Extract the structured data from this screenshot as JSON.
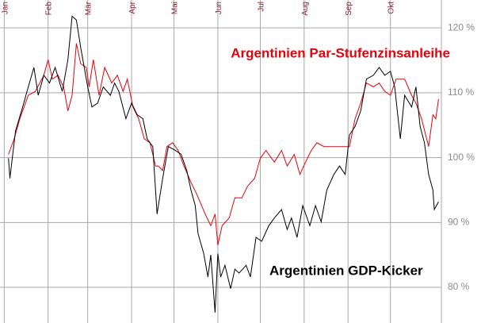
{
  "chart_data": {
    "type": "line",
    "xlim": [
      -3,
      309
    ],
    "xticks": [
      {
        "value": 0,
        "label": "Jan"
      },
      {
        "value": 31,
        "label": "Feb"
      },
      {
        "value": 59,
        "label": "Mär"
      },
      {
        "value": 90,
        "label": "Apr"
      },
      {
        "value": 120,
        "label": "Mai"
      },
      {
        "value": 151,
        "label": "Jun"
      },
      {
        "value": 181,
        "label": "Jul"
      },
      {
        "value": 212,
        "label": "Aug"
      },
      {
        "value": 243,
        "label": "Sep"
      },
      {
        "value": 273,
        "label": "Okt"
      }
    ],
    "ylim": [
      74.5,
      124.3
    ],
    "yticks": [
      {
        "value": 80,
        "label": "80 %"
      },
      {
        "value": 90,
        "label": "90 %"
      },
      {
        "value": 100,
        "label": "100 %"
      },
      {
        "value": 110,
        "label": "110 %"
      },
      {
        "value": 120,
        "label": "120 %"
      }
    ],
    "grid": true,
    "series": [
      {
        "name": "Argentinien Par-Stufenzinsanleihe",
        "color": "#e8000b",
        "x": [
          3,
          7,
          11,
          17,
          22,
          28,
          31,
          34,
          38,
          42,
          45,
          48,
          51,
          54,
          58,
          60,
          63,
          67,
          71,
          76,
          80,
          84,
          87,
          91,
          95,
          99,
          103,
          107,
          109,
          112,
          115,
          119,
          123,
          127,
          132,
          136,
          142,
          146,
          149,
          151,
          154,
          159,
          163,
          168,
          172,
          177,
          181,
          185,
          191,
          196,
          200,
          205,
          209,
          213,
          217,
          221,
          226,
          230,
          235,
          239,
          244,
          248,
          252,
          256,
          261,
          265,
          269,
          273,
          277,
          283,
          288,
          291,
          295,
          300,
          303,
          305,
          307
        ],
        "values": [
          100.5,
          102.9,
          106.0,
          109.6,
          110.2,
          112.7,
          115.1,
          112.1,
          112.7,
          110.9,
          107.2,
          109.6,
          117.6,
          114.5,
          113.9,
          110.9,
          115.1,
          109.6,
          113.9,
          111.5,
          112.7,
          110.2,
          112.1,
          107.8,
          106.0,
          102.9,
          102.3,
          98.7,
          98.7,
          98.0,
          101.7,
          102.3,
          101.1,
          98.7,
          96.2,
          94.4,
          91.3,
          89.5,
          91.3,
          86.5,
          89.5,
          90.7,
          93.8,
          93.8,
          95.6,
          96.8,
          99.9,
          101.1,
          99.3,
          101.1,
          98.7,
          100.5,
          97.4,
          99.3,
          101.1,
          102.3,
          101.7,
          101.7,
          101.7,
          101.7,
          101.7,
          106.0,
          108.4,
          111.5,
          110.9,
          111.5,
          110.2,
          109.6,
          112.1,
          112.1,
          109.6,
          108.4,
          106.0,
          101.7,
          106.6,
          106.0,
          109.0
        ]
      },
      {
        "name": "Argentinien GDP-Kicker",
        "color": "#000000",
        "x": [
          3,
          4,
          8,
          13,
          17,
          21,
          24,
          28,
          32,
          36,
          41,
          45,
          48,
          51,
          54,
          59,
          62,
          66,
          70,
          75,
          78,
          81,
          86,
          90,
          94,
          98,
          101,
          105,
          108,
          112,
          116,
          121,
          125,
          129,
          132,
          135,
          137,
          141,
          144,
          146,
          149,
          151,
          153,
          156,
          160,
          163,
          166,
          171,
          174,
          178,
          182,
          187,
          191,
          196,
          200,
          203,
          207,
          211,
          216,
          220,
          224,
          228,
          233,
          237,
          241,
          244,
          248,
          252,
          256,
          261,
          265,
          269,
          273,
          276,
          280,
          283,
          288,
          291,
          294,
          297,
          300,
          303,
          304,
          307
        ],
        "values": [
          99.9,
          96.8,
          104.1,
          107.8,
          110.9,
          113.9,
          109.6,
          112.7,
          111.5,
          113.9,
          110.2,
          115.1,
          121.8,
          121.2,
          117.0,
          110.9,
          107.8,
          108.4,
          110.9,
          109.6,
          111.5,
          110.2,
          106.0,
          108.4,
          106.6,
          106.0,
          102.9,
          101.7,
          91.3,
          96.8,
          101.7,
          101.1,
          100.5,
          98.0,
          95.0,
          92.6,
          88.3,
          85.2,
          81.6,
          85.0,
          76.1,
          85.2,
          81.6,
          83.4,
          79.8,
          82.8,
          82.2,
          83.4,
          81.6,
          87.7,
          87.1,
          89.5,
          90.7,
          92.0,
          88.9,
          90.7,
          87.7,
          92.6,
          89.5,
          92.6,
          90.1,
          95.0,
          97.4,
          98.7,
          97.4,
          103.5,
          104.8,
          107.2,
          112.1,
          112.7,
          113.9,
          112.7,
          113.3,
          110.9,
          102.9,
          109.6,
          107.8,
          110.9,
          104.8,
          102.3,
          97.4,
          95.0,
          92.0,
          93.2
        ]
      }
    ]
  }
}
